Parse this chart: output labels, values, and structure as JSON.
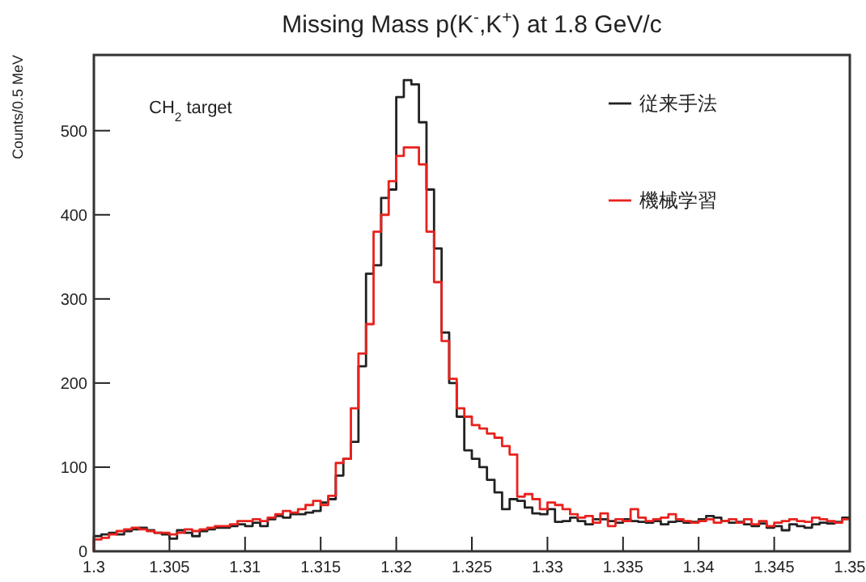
{
  "chart_data": {
    "type": "histogram",
    "title": "Missing Mass p(K$^{-}$,K$^{+}$) at 1.8 GeV/c",
    "ylabel": "Counts/0.5 MeV",
    "annotations": [
      "CH$_{2}$ target"
    ],
    "legend": "top right",
    "xlim": [
      1.3,
      1.35
    ],
    "xticks": [
      1.3,
      1.305,
      1.31,
      1.315,
      1.32,
      1.325,
      1.33,
      1.335,
      1.34,
      1.345,
      1.35
    ],
    "ylim": [
      0,
      590
    ],
    "yticks": [
      0,
      100,
      200,
      300,
      400,
      500
    ],
    "bins": [
      1.3,
      1.3005,
      1.301,
      1.3015,
      1.302,
      1.3025,
      1.303,
      1.3035,
      1.304,
      1.3045,
      1.305,
      1.3055,
      1.306,
      1.3065,
      1.307,
      1.3075,
      1.308,
      1.3085,
      1.309,
      1.3095,
      1.31,
      1.3105,
      1.311,
      1.3115,
      1.312,
      1.3125,
      1.313,
      1.3135,
      1.314,
      1.3145,
      1.315,
      1.3155,
      1.316,
      1.3165,
      1.317,
      1.3175,
      1.318,
      1.3185,
      1.319,
      1.3195,
      1.32,
      1.3205,
      1.321,
      1.3215,
      1.322,
      1.3225,
      1.323,
      1.3235,
      1.324,
      1.3245,
      1.325,
      1.3255,
      1.326,
      1.3265,
      1.327,
      1.3275,
      1.328,
      1.3285,
      1.329,
      1.3295,
      1.33,
      1.3305,
      1.331,
      1.3315,
      1.332,
      1.3325,
      1.333,
      1.3335,
      1.334,
      1.3345,
      1.335,
      1.3355,
      1.336,
      1.3365,
      1.337,
      1.3375,
      1.338,
      1.3385,
      1.339,
      1.3395,
      1.34,
      1.3405,
      1.341,
      1.3415,
      1.342,
      1.3425,
      1.343,
      1.3435,
      1.344,
      1.3445,
      1.345,
      1.3455,
      1.346,
      1.3465,
      1.347,
      1.3475,
      1.348,
      1.3485,
      1.349,
      1.3495,
      1.35
    ],
    "series": [
      {
        "name": "従来手法",
        "color": "#222222",
        "values": [
          18,
          20,
          22,
          20,
          24,
          26,
          28,
          25,
          22,
          20,
          15,
          25,
          22,
          18,
          24,
          26,
          28,
          28,
          30,
          32,
          30,
          34,
          30,
          38,
          42,
          40,
          44,
          44,
          46,
          48,
          58,
          62,
          90,
          110,
          130,
          220,
          330,
          340,
          420,
          430,
          540,
          560,
          555,
          510,
          430,
          360,
          260,
          200,
          160,
          120,
          110,
          100,
          85,
          70,
          50,
          62,
          60,
          52,
          45,
          44,
          50,
          35,
          36,
          40,
          36,
          32,
          38,
          38,
          36,
          34,
          38,
          36,
          35,
          34,
          36,
          32,
          35,
          36,
          34,
          35,
          38,
          42,
          40,
          36,
          34,
          35,
          32,
          30,
          33,
          28,
          30,
          25,
          32,
          30,
          28,
          32,
          34,
          33,
          35,
          40
        ]
      },
      {
        "name": "機械学習",
        "color": "#e8221e",
        "values": [
          14,
          16,
          20,
          24,
          26,
          28,
          26,
          24,
          22,
          22,
          20,
          22,
          26,
          24,
          26,
          28,
          30,
          30,
          32,
          36,
          36,
          38,
          36,
          40,
          44,
          48,
          46,
          50,
          55,
          60,
          55,
          66,
          105,
          110,
          170,
          235,
          270,
          380,
          400,
          440,
          470,
          480,
          480,
          460,
          380,
          320,
          250,
          205,
          170,
          160,
          150,
          146,
          140,
          135,
          125,
          115,
          65,
          68,
          62,
          50,
          58,
          55,
          50,
          44,
          40,
          42,
          34,
          45,
          30,
          38,
          36,
          50,
          40,
          36,
          38,
          40,
          44,
          38,
          36,
          34,
          36,
          38,
          34,
          36,
          38,
          34,
          38,
          32,
          36,
          30,
          34,
          36,
          38,
          36,
          35,
          40,
          38,
          36,
          34,
          38
        ]
      }
    ]
  }
}
